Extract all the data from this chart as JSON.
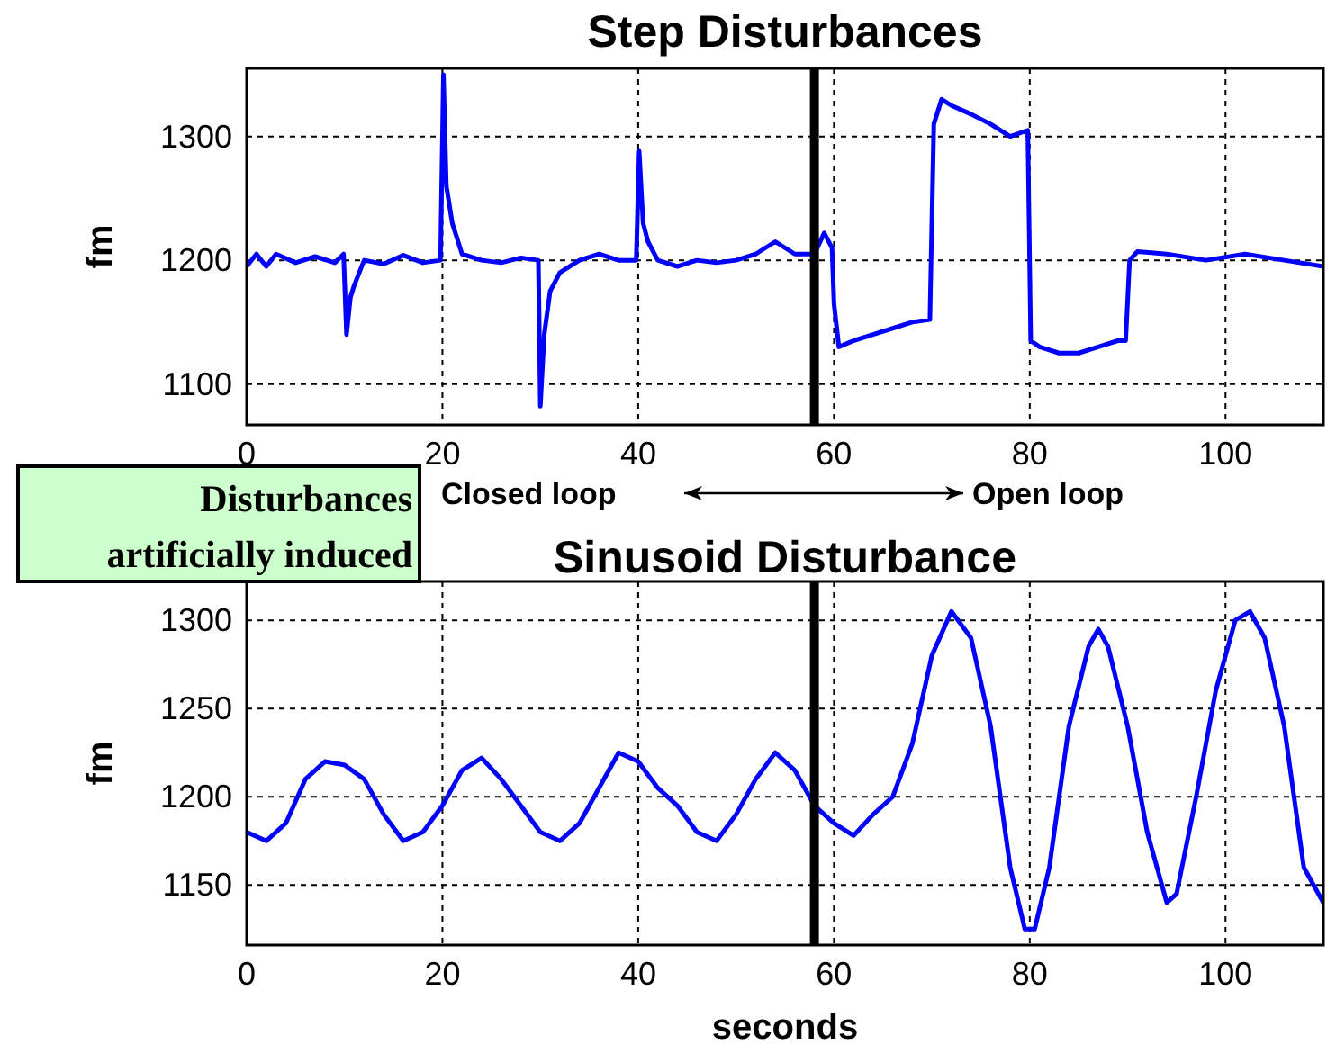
{
  "chart_data": [
    {
      "type": "line",
      "title": "Step Disturbances",
      "ylabel": "fm",
      "xlim": [
        0,
        110
      ],
      "xticks": [
        0,
        20,
        40,
        60,
        80,
        100
      ],
      "ylim": [
        1067,
        1355
      ],
      "yticks": [
        1100,
        1200,
        1300
      ],
      "grid": true,
      "x": [
        0,
        1,
        2,
        3,
        5,
        7,
        9,
        9.9,
        10.2,
        10.6,
        11,
        12,
        14,
        16,
        18,
        19.8,
        20.1,
        20.4,
        21,
        22,
        24,
        26,
        28,
        29.8,
        30,
        30.4,
        31,
        32,
        34,
        36,
        38,
        39.8,
        40.1,
        40.5,
        41,
        42,
        44,
        46,
        48,
        50,
        52,
        54,
        56,
        58,
        59,
        59.8,
        60,
        60.5,
        62,
        64,
        66,
        68,
        69.8,
        70.2,
        71,
        72,
        74,
        76,
        78,
        79.8,
        80.1,
        81,
        83,
        85,
        87,
        89,
        89.8,
        90.2,
        91,
        94,
        98,
        102,
        106,
        110
      ],
      "series": [
        {
          "color": "#0000ff",
          "values": [
            1195,
            1205,
            1195,
            1205,
            1198,
            1203,
            1198,
            1205,
            1140,
            1170,
            1180,
            1200,
            1197,
            1204,
            1198,
            1200,
            1350,
            1260,
            1230,
            1205,
            1200,
            1198,
            1202,
            1200,
            1082,
            1140,
            1175,
            1190,
            1200,
            1205,
            1200,
            1200,
            1288,
            1230,
            1215,
            1200,
            1195,
            1200,
            1198,
            1200,
            1205,
            1215,
            1205,
            1205,
            1222,
            1210,
            1165,
            1130,
            1135,
            1140,
            1145,
            1150,
            1152,
            1310,
            1330,
            1325,
            1318,
            1310,
            1300,
            1305,
            1135,
            1130,
            1125,
            1125,
            1130,
            1135,
            1135,
            1200,
            1207,
            1205,
            1200,
            1205,
            1200,
            1195
          ]
        }
      ],
      "ref_lines": [
        {
          "axis": "x",
          "value": 58,
          "color": "#000000"
        }
      ],
      "annotations": [
        "Closed loop",
        "Open loop",
        "Disturbances artificially induced"
      ]
    },
    {
      "type": "line",
      "title": "Sinusoid Disturbance",
      "xlabel": "seconds",
      "ylabel": "fm",
      "xlim": [
        0,
        110
      ],
      "xticks": [
        0,
        20,
        40,
        60,
        80,
        100
      ],
      "ylim": [
        1116,
        1322
      ],
      "yticks": [
        1150,
        1200,
        1250,
        1300
      ],
      "grid": true,
      "x": [
        0,
        2,
        4,
        6,
        8,
        10,
        12,
        14,
        16,
        18,
        20,
        22,
        24,
        26,
        28,
        30,
        32,
        34,
        36,
        38,
        40,
        42,
        44,
        46,
        48,
        50,
        52,
        54,
        56,
        58,
        60,
        62,
        64,
        66,
        68,
        70,
        72,
        74,
        76,
        78,
        79.5,
        80.5,
        82,
        84,
        86,
        87,
        88,
        90,
        92,
        94,
        95,
        97,
        99,
        101,
        102.5,
        104,
        106,
        108,
        110
      ],
      "series": [
        {
          "color": "#0000ff",
          "values": [
            1180,
            1175,
            1185,
            1210,
            1220,
            1218,
            1210,
            1190,
            1175,
            1180,
            1195,
            1215,
            1222,
            1210,
            1195,
            1180,
            1175,
            1185,
            1205,
            1225,
            1220,
            1205,
            1195,
            1180,
            1175,
            1190,
            1210,
            1225,
            1215,
            1195,
            1185,
            1178,
            1190,
            1200,
            1230,
            1280,
            1305,
            1290,
            1240,
            1160,
            1125,
            1125,
            1160,
            1240,
            1285,
            1295,
            1285,
            1240,
            1180,
            1140,
            1145,
            1200,
            1260,
            1300,
            1305,
            1290,
            1240,
            1160,
            1140
          ]
        }
      ],
      "ref_lines": [
        {
          "axis": "x",
          "value": 58,
          "color": "#000000"
        }
      ]
    }
  ]
}
